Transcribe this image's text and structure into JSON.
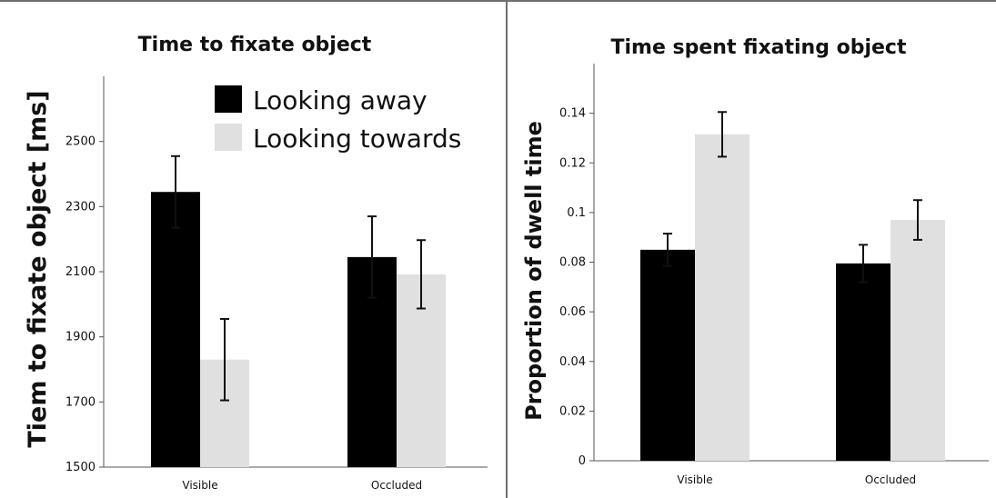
{
  "chart_data": [
    {
      "type": "bar",
      "title": "Time to fixate object",
      "ylabel": "Tiem to fixate object [ms]",
      "xlabel": "",
      "categories": [
        "Visible",
        "Occluded"
      ],
      "ylim": [
        1500,
        2700
      ],
      "yticks": [
        1500,
        1700,
        1900,
        2100,
        2300,
        2500
      ],
      "legend_position": "top-right",
      "series": [
        {
          "name": "Looking away",
          "color": "#000000",
          "values": [
            2345,
            2145
          ],
          "error": [
            110,
            125
          ]
        },
        {
          "name": "Looking towards",
          "color": "#e0e0e0",
          "values": [
            1830,
            2092
          ],
          "error": [
            125,
            105
          ]
        }
      ]
    },
    {
      "type": "bar",
      "title": "Time spent fixating object",
      "ylabel": "Proportion of dwell time",
      "xlabel": "",
      "categories": [
        "Visible",
        "Occluded"
      ],
      "ylim": [
        0,
        0.16
      ],
      "yticks": [
        "0",
        "0.02",
        "0.04",
        "0.06",
        "0.08",
        "0.1",
        "0.12",
        "0.14"
      ],
      "series": [
        {
          "name": "Looking away",
          "color": "#000000",
          "values": [
            0.085,
            0.0795
          ],
          "error": [
            0.0065,
            0.0075
          ]
        },
        {
          "name": "Looking towards",
          "color": "#e0e0e0",
          "values": [
            0.1315,
            0.097
          ],
          "error": [
            0.009,
            0.008
          ]
        }
      ]
    }
  ]
}
